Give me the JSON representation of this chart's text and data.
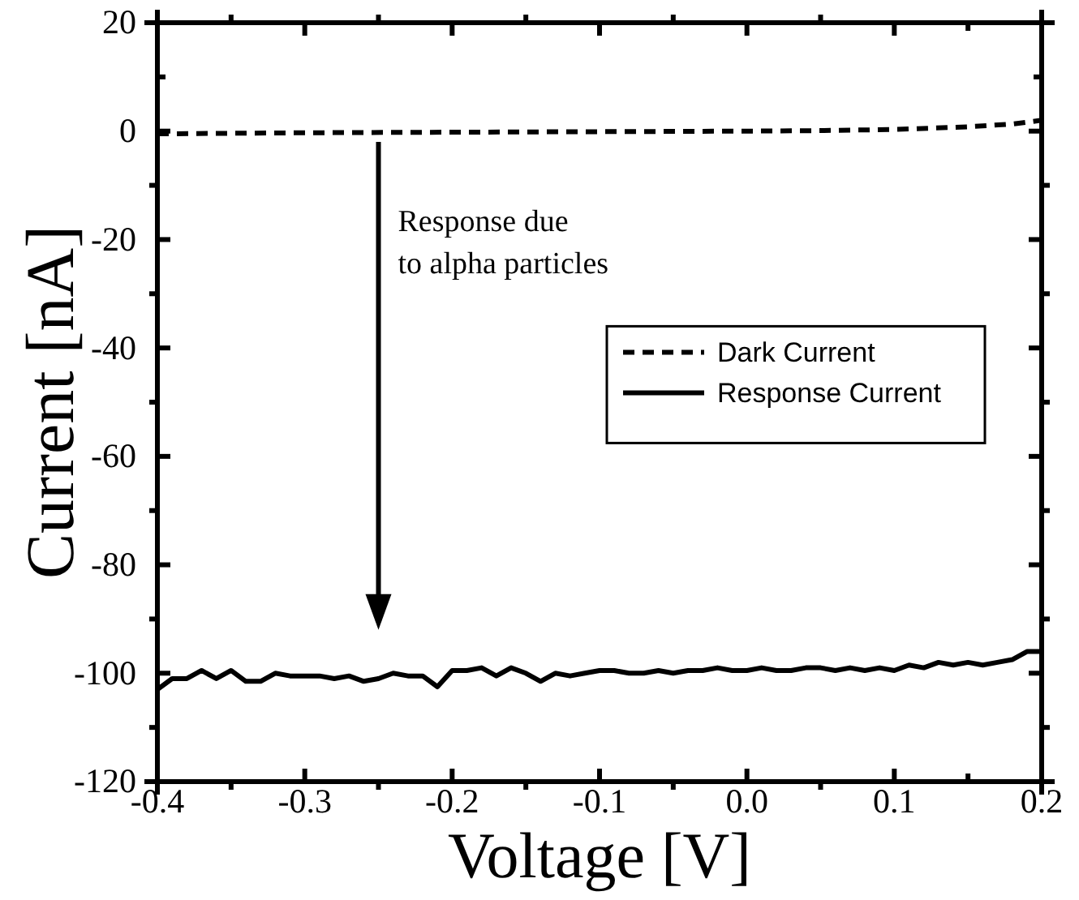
{
  "chart_data": {
    "type": "line",
    "xlabel": "Voltage [V]",
    "ylabel": "Current [nA]",
    "xlim": [
      -0.4,
      0.2
    ],
    "xticks": [
      -0.4,
      -0.3,
      -0.2,
      -0.1,
      {
        "value": 0,
        "label": "0.0"
      },
      0.1,
      0.2
    ],
    "ylim": [
      -120,
      20
    ],
    "yticks": [
      -120,
      -100,
      -80,
      -60,
      -40,
      -20,
      0,
      20
    ],
    "legend": "right",
    "grid": false,
    "annotations": [
      "Response due\nto alpha particles"
    ],
    "series": [
      {
        "name": "Dark Current",
        "color": "#000000",
        "line_style": "dashed",
        "x": [
          -0.4,
          -0.3,
          -0.2,
          -0.1,
          0,
          0.05,
          0.1,
          0.15,
          0.18,
          0.2
        ],
        "values": [
          -0.5,
          -0.3,
          -0.2,
          -0.1,
          0,
          0.1,
          0.3,
          0.8,
          1.3,
          2
        ]
      },
      {
        "name": "Response Current",
        "color": "#000000",
        "line_style": "solid",
        "x": [
          -0.4,
          -0.39,
          -0.38,
          -0.37,
          -0.36,
          -0.35,
          -0.34,
          -0.33,
          -0.32,
          -0.31,
          -0.3,
          -0.29,
          -0.28,
          -0.27,
          -0.26,
          -0.25,
          -0.24,
          -0.23,
          -0.22,
          -0.21,
          -0.2,
          -0.19,
          -0.18,
          -0.17,
          -0.16,
          -0.15,
          -0.14,
          -0.13,
          -0.12,
          -0.11,
          -0.1,
          -0.09,
          -0.08,
          -0.07,
          -0.06,
          -0.05,
          -0.04,
          -0.03,
          -0.02,
          -0.01,
          0,
          0.01,
          0.02,
          0.03,
          0.04,
          0.05,
          0.06,
          0.07,
          0.08,
          0.09,
          0.1,
          0.11,
          0.12,
          0.13,
          0.14,
          0.15,
          0.16,
          0.17,
          0.18,
          0.19,
          0.2
        ],
        "values": [
          -103,
          -101,
          -101,
          -99.5,
          -101,
          -99.5,
          -101.5,
          -101.5,
          -100,
          -100.5,
          -100.5,
          -100.5,
          -101,
          -100.5,
          -101.5,
          -101,
          -100,
          -100.5,
          -100.5,
          -102.5,
          -99.5,
          -99.5,
          -99,
          -100.5,
          -99,
          -100,
          -101.5,
          -100,
          -100.5,
          -100,
          -99.5,
          -99.5,
          -100,
          -100,
          -99.5,
          -100,
          -99.5,
          -99.5,
          -99,
          -99.5,
          -99.5,
          -99,
          -99.5,
          -99.5,
          -99,
          -99,
          -99.5,
          -99,
          -99.5,
          -99,
          -99.5,
          -98.5,
          -99,
          -98,
          -98.5,
          -98,
          -98.5,
          -98,
          -97.5,
          -96,
          -96
        ]
      }
    ]
  }
}
